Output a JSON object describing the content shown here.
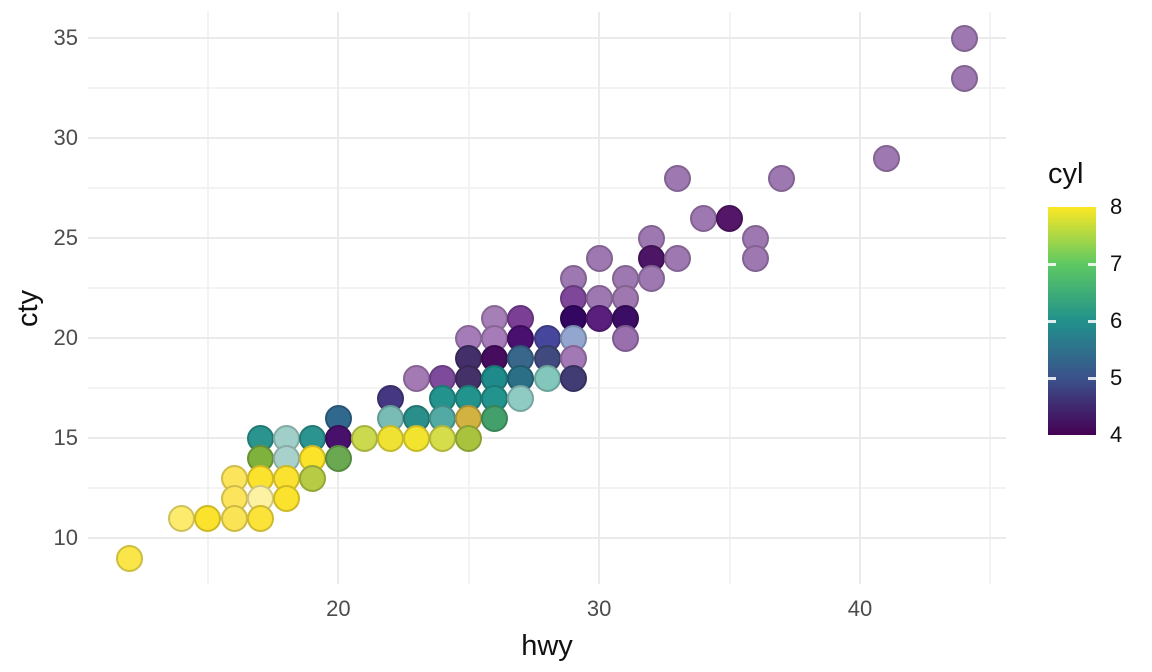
{
  "chart_data": {
    "type": "scatter",
    "title": "",
    "xlabel": "hwy",
    "ylabel": "cty",
    "xlim": [
      10.4,
      45.6
    ],
    "ylim": [
      7.7,
      36.3
    ],
    "x_major_ticks": [
      20,
      30,
      40
    ],
    "y_major_ticks": [
      10,
      15,
      20,
      25,
      30,
      35
    ],
    "x_minor_ticks": [
      15,
      25,
      35,
      45
    ],
    "y_minor_ticks": [
      12.5,
      17.5,
      22.5,
      27.5,
      32.5
    ],
    "grid": "on",
    "legend": {
      "title": "cyl",
      "position": "right",
      "range": [
        4,
        8
      ],
      "tick_labels": [
        8,
        7,
        6,
        5,
        4
      ],
      "gradient_stops": [
        "#fde725",
        "#5ec962",
        "#21918c",
        "#3b528b",
        "#440154"
      ]
    },
    "points": [
      {
        "hwy": 44,
        "cty": 35,
        "color": "#9e79b1"
      },
      {
        "hwy": 44,
        "cty": 33,
        "color": "#9e79b1"
      },
      {
        "hwy": 41,
        "cty": 29,
        "color": "#9e79b1"
      },
      {
        "hwy": 33,
        "cty": 28,
        "color": "#9e79b1"
      },
      {
        "hwy": 37,
        "cty": 28,
        "color": "#9e79b1"
      },
      {
        "hwy": 34,
        "cty": 26,
        "color": "#9e79b1"
      },
      {
        "hwy": 35,
        "cty": 26,
        "color": "#541668"
      },
      {
        "hwy": 32,
        "cty": 25,
        "color": "#9e79b1"
      },
      {
        "hwy": 36,
        "cty": 25,
        "color": "#9e79b1"
      },
      {
        "hwy": 30,
        "cty": 24,
        "color": "#9e79b1"
      },
      {
        "hwy": 32,
        "cty": 24,
        "color": "#4c1566"
      },
      {
        "hwy": 33,
        "cty": 24,
        "color": "#9e79b1"
      },
      {
        "hwy": 36,
        "cty": 24,
        "color": "#9e79b1"
      },
      {
        "hwy": 29,
        "cty": 23,
        "color": "#9e79b1"
      },
      {
        "hwy": 31,
        "cty": 23,
        "color": "#9e79b1"
      },
      {
        "hwy": 32,
        "cty": 23,
        "color": "#9e79b1"
      },
      {
        "hwy": 29,
        "cty": 22,
        "color": "#7e4799"
      },
      {
        "hwy": 30,
        "cty": 22,
        "color": "#9e79b1"
      },
      {
        "hwy": 31,
        "cty": 22,
        "color": "#a078b0"
      },
      {
        "hwy": 26,
        "cty": 21,
        "color": "#a57fb5"
      },
      {
        "hwy": 27,
        "cty": 21,
        "color": "#7b3f96"
      },
      {
        "hwy": 29,
        "cty": 21,
        "color": "#330661"
      },
      {
        "hwy": 30,
        "cty": 21,
        "color": "#5a1f7d"
      },
      {
        "hwy": 31,
        "cty": 21,
        "color": "#3c0d64"
      },
      {
        "hwy": 25,
        "cty": 20,
        "color": "#a57cb8"
      },
      {
        "hwy": 26,
        "cty": 20,
        "color": "#a57cb8"
      },
      {
        "hwy": 27,
        "cty": 20,
        "color": "#4a1070"
      },
      {
        "hwy": 28,
        "cty": 20,
        "color": "#46479c"
      },
      {
        "hwy": 29,
        "cty": 20,
        "color": "#93a6cf"
      },
      {
        "hwy": 31,
        "cty": 20,
        "color": "#9a6fae"
      },
      {
        "hwy": 25,
        "cty": 19,
        "color": "#43306b"
      },
      {
        "hwy": 26,
        "cty": 19,
        "color": "#460c5e"
      },
      {
        "hwy": 27,
        "cty": 19,
        "color": "#39678c"
      },
      {
        "hwy": 28,
        "cty": 19,
        "color": "#414a7e"
      },
      {
        "hwy": 29,
        "cty": 19,
        "color": "#a379b5"
      },
      {
        "hwy": 23,
        "cty": 18,
        "color": "#a37ab3"
      },
      {
        "hwy": 24,
        "cty": 18,
        "color": "#7e4b9c"
      },
      {
        "hwy": 25,
        "cty": 18,
        "color": "#433168"
      },
      {
        "hwy": 26,
        "cty": 18,
        "color": "#1f8a8a"
      },
      {
        "hwy": 27,
        "cty": 18,
        "color": "#2a6f86"
      },
      {
        "hwy": 28,
        "cty": 18,
        "color": "#82c6bc"
      },
      {
        "hwy": 29,
        "cty": 18,
        "color": "#423c74"
      },
      {
        "hwy": 22,
        "cty": 17,
        "color": "#453781"
      },
      {
        "hwy": 24,
        "cty": 17,
        "color": "#23938d"
      },
      {
        "hwy": 25,
        "cty": 17,
        "color": "#23938d"
      },
      {
        "hwy": 26,
        "cty": 17,
        "color": "#23938d"
      },
      {
        "hwy": 27,
        "cty": 17,
        "color": "#8fcbc3"
      },
      {
        "hwy": 20,
        "cty": 16,
        "color": "#31688e"
      },
      {
        "hwy": 22,
        "cty": 16,
        "color": "#79bcb6"
      },
      {
        "hwy": 23,
        "cty": 16,
        "color": "#2a8f8a"
      },
      {
        "hwy": 24,
        "cty": 16,
        "color": "#53aaa4"
      },
      {
        "hwy": 25,
        "cty": 16,
        "color": "#d2b240"
      },
      {
        "hwy": 26,
        "cty": 16,
        "color": "#44a06b"
      },
      {
        "hwy": 17,
        "cty": 15,
        "color": "#2b948e"
      },
      {
        "hwy": 18,
        "cty": 15,
        "color": "#a0cfc9"
      },
      {
        "hwy": 19,
        "cty": 15,
        "color": "#2b9490"
      },
      {
        "hwy": 20,
        "cty": 15,
        "color": "#47106b"
      },
      {
        "hwy": 21,
        "cty": 15,
        "color": "#cbd94e"
      },
      {
        "hwy": 22,
        "cty": 15,
        "color": "#f0e233"
      },
      {
        "hwy": 23,
        "cty": 15,
        "color": "#f2e42e"
      },
      {
        "hwy": 24,
        "cty": 15,
        "color": "#d5dd4b"
      },
      {
        "hwy": 25,
        "cty": 15,
        "color": "#a9c33e"
      },
      {
        "hwy": 17,
        "cty": 14,
        "color": "#7fb13d"
      },
      {
        "hwy": 18,
        "cty": 14,
        "color": "#a8d1cb"
      },
      {
        "hwy": 19,
        "cty": 14,
        "color": "#fbe32a"
      },
      {
        "hwy": 20,
        "cty": 14,
        "color": "#6aa851"
      },
      {
        "hwy": 16,
        "cty": 13,
        "color": "#fce55c"
      },
      {
        "hwy": 17,
        "cty": 13,
        "color": "#fbe22d"
      },
      {
        "hwy": 18,
        "cty": 13,
        "color": "#fbe230"
      },
      {
        "hwy": 19,
        "cty": 13,
        "color": "#b7cb44"
      },
      {
        "hwy": 16,
        "cty": 12,
        "color": "#fce55c"
      },
      {
        "hwy": 17,
        "cty": 12,
        "color": "#fdf2a4"
      },
      {
        "hwy": 18,
        "cty": 12,
        "color": "#fbe22d"
      },
      {
        "hwy": 14,
        "cty": 11,
        "color": "#fdeb6e"
      },
      {
        "hwy": 15,
        "cty": 11,
        "color": "#fbe22d"
      },
      {
        "hwy": 16,
        "cty": 11,
        "color": "#fae354"
      },
      {
        "hwy": 17,
        "cty": 11,
        "color": "#fbe33a"
      },
      {
        "hwy": 12,
        "cty": 9,
        "color": "#fbe64a"
      }
    ]
  }
}
